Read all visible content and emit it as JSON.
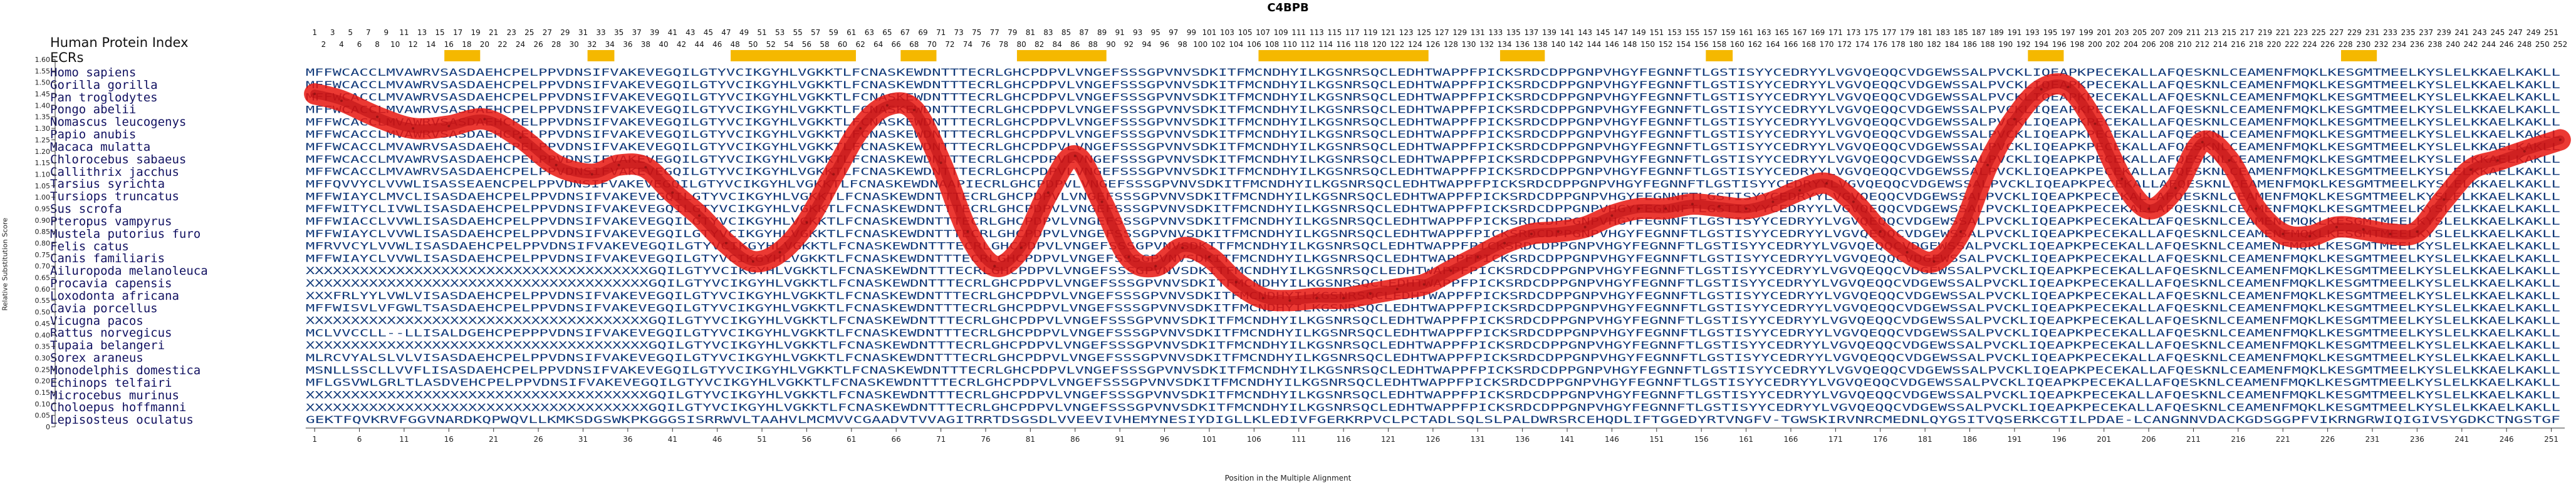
{
  "chart_data": {
    "type": "line",
    "title": "C4BPB",
    "xlabel": "Position in the Multiple Alignment",
    "ylabel": "Relative Substitution Score",
    "ylim": [
      0,
      1.6
    ],
    "y_ticks": [
      "0",
      "0.05",
      "0.10",
      "0.15",
      "0.20",
      "0.25",
      "0.30",
      "0.35",
      "0.40",
      "0.45",
      "0.50",
      "0.55",
      "0.60",
      "0.65",
      "0.70",
      "0.75",
      "0.80",
      "0.85",
      "0.90",
      "0.95",
      "1.00",
      "1.05",
      "1.10",
      "1.15",
      "1.20",
      "1.25",
      "1.30",
      "1.35",
      "1.40",
      "1.45",
      "1.50",
      "1.55",
      "1.60"
    ],
    "x_range": [
      1,
      252
    ],
    "x_ticks": [
      "1",
      "6",
      "11",
      "16",
      "21",
      "26",
      "31",
      "36",
      "41",
      "46",
      "51",
      "56",
      "61",
      "66",
      "71",
      "76",
      "81",
      "86",
      "91",
      "96",
      "101",
      "106",
      "111",
      "116",
      "121",
      "126",
      "131",
      "136",
      "141",
      "146",
      "151",
      "156",
      "161",
      "166",
      "171",
      "176",
      "181",
      "186",
      "191",
      "196",
      "201",
      "206",
      "211",
      "216",
      "221",
      "226",
      "231",
      "236",
      "241",
      "246",
      "251"
    ],
    "top_ruler_odd": [
      "1",
      "3",
      "5",
      "7",
      "9",
      "11",
      "13",
      "15",
      "17",
      "19",
      "21",
      "23",
      "25",
      "27",
      "29",
      "31",
      "33",
      "35",
      "37",
      "39",
      "41",
      "43",
      "45",
      "47",
      "49",
      "51",
      "53",
      "55",
      "57",
      "59",
      "61",
      "63",
      "65",
      "67",
      "69",
      "71",
      "73",
      "75",
      "77",
      "79",
      "81",
      "83",
      "85",
      "87",
      "89",
      "91",
      "93",
      "95",
      "97",
      "99",
      "101",
      "103",
      "105",
      "107",
      "109",
      "111",
      "113",
      "115",
      "117",
      "119",
      "121",
      "123",
      "125",
      "127",
      "129",
      "131",
      "133",
      "135",
      "137",
      "139",
      "141",
      "143",
      "145",
      "147",
      "149",
      "151",
      "153",
      "155",
      "157",
      "159",
      "161",
      "163",
      "165",
      "167",
      "169",
      "171",
      "173",
      "175",
      "177",
      "179",
      "181",
      "183",
      "185",
      "187",
      "189",
      "191",
      "193",
      "195",
      "197",
      "199",
      "201",
      "203",
      "205",
      "207",
      "209",
      "211",
      "213",
      "215",
      "217",
      "219",
      "221",
      "223",
      "225",
      "227",
      "229",
      "231",
      "233",
      "235",
      "237",
      "239",
      "241",
      "243",
      "245",
      "247",
      "249",
      "251"
    ],
    "top_ruler_even": [
      "2",
      "4",
      "6",
      "8",
      "10",
      "12",
      "14",
      "16",
      "18",
      "20",
      "22",
      "24",
      "26",
      "28",
      "30",
      "32",
      "34",
      "36",
      "38",
      "40",
      "42",
      "44",
      "46",
      "48",
      "50",
      "52",
      "54",
      "56",
      "58",
      "60",
      "62",
      "64",
      "66",
      "68",
      "70",
      "72",
      "74",
      "76",
      "78",
      "80",
      "82",
      "84",
      "86",
      "88",
      "90",
      "92",
      "94",
      "96",
      "98",
      "100",
      "102",
      "104",
      "106",
      "108",
      "110",
      "112",
      "114",
      "116",
      "118",
      "120",
      "122",
      "124",
      "126",
      "128",
      "130",
      "132",
      "134",
      "136",
      "138",
      "140",
      "142",
      "144",
      "146",
      "148",
      "150",
      "152",
      "154",
      "156",
      "158",
      "160",
      "162",
      "164",
      "166",
      "168",
      "170",
      "172",
      "174",
      "176",
      "178",
      "180",
      "182",
      "184",
      "186",
      "188",
      "190",
      "192",
      "194",
      "196",
      "198",
      "200",
      "202",
      "204",
      "206",
      "208",
      "210",
      "212",
      "214",
      "216",
      "218",
      "220",
      "222",
      "224",
      "226",
      "228",
      "230",
      "232",
      "234",
      "236",
      "238",
      "240",
      "242",
      "244",
      "246",
      "248",
      "250",
      "252"
    ],
    "series": [
      {
        "x": [
          1,
          4,
          8,
          12,
          16,
          20,
          24,
          28,
          32,
          35,
          38,
          41,
          44,
          47,
          50,
          53,
          56,
          59,
          62,
          65,
          68,
          71,
          74,
          77,
          80,
          83,
          86,
          89,
          92,
          95,
          98,
          101,
          104,
          107,
          110,
          113,
          116,
          119,
          122,
          125,
          128,
          131,
          134,
          137,
          140,
          143,
          146,
          149,
          152,
          155,
          158,
          161,
          164,
          167,
          170,
          173,
          176,
          179,
          182,
          185,
          188,
          191,
          194,
          197,
          200,
          203,
          206,
          209,
          212,
          215,
          218,
          221,
          224,
          227,
          230,
          233,
          236,
          239,
          242,
          245,
          248,
          252
        ],
        "values": [
          1.45,
          1.42,
          1.35,
          1.3,
          1.31,
          1.34,
          1.26,
          1.14,
          1.1,
          1.14,
          1.13,
          1.02,
          0.92,
          0.8,
          0.72,
          0.76,
          0.89,
          1.1,
          1.3,
          1.4,
          1.38,
          1.15,
          0.85,
          0.7,
          0.78,
          1.02,
          1.18,
          0.98,
          0.74,
          0.7,
          0.78,
          0.74,
          0.63,
          0.56,
          0.55,
          0.56,
          0.56,
          0.58,
          0.6,
          0.62,
          0.68,
          0.74,
          0.8,
          0.84,
          0.85,
          0.87,
          0.92,
          0.95,
          0.95,
          0.97,
          0.96,
          0.95,
          0.98,
          1.03,
          1.06,
          0.98,
          0.85,
          0.76,
          0.72,
          0.85,
          1.14,
          1.34,
          1.47,
          1.48,
          1.32,
          1.08,
          0.95,
          1.04,
          1.24,
          1.16,
          0.95,
          0.84,
          0.83,
          0.87,
          0.86,
          0.84,
          0.85,
          0.99,
          1.12,
          1.16,
          1.2,
          1.25
        ]
      }
    ],
    "ecr_highlights": [
      [
        16,
        19
      ],
      [
        32,
        34
      ],
      [
        48,
        61
      ],
      [
        67,
        70
      ],
      [
        80,
        89
      ],
      [
        107,
        125
      ],
      [
        134,
        138
      ],
      [
        157,
        159
      ],
      [
        193,
        196
      ],
      [
        228,
        231
      ]
    ]
  },
  "left_header": {
    "index_title": "Human Protein Index",
    "ecr_label": "ECRs"
  },
  "species": [
    {
      "name": "Homo sapiens",
      "seq": "MFFWCACCLMVAWRVSASDAEHCPELPPVDNSIFVAKEVEGQILGTYVCIKGYHLVGKKTLFCNASKEWDNTTTECRLGHCPDPVLVNGEFSSSGPVNVSDKITFMCNDHYILKGSNRSQCLEDHTWAPPFPICKSRDCDPPGNPVHGYFEGNNFTLGSTISYYCEDRYYLVGVQEQQCVDGEWSSALPVCKLIQEAPKPECEKALLAFQESKNLCEAMENFMQKLKESGMTMEELKYSLELKKAELKAKLL"
    },
    {
      "name": "Gorilla gorilla",
      "seq": "MFFWCACCLMVAWRVSASDAEHCPELPPVDNSIFVAKEVEGQILGTYVCIKGYHLVGKKTLFCNASKEWDNTTTECRLGHCPDPVLVNGEFSSSGPVNVSDKITFMCNDHYILKGSNRSQCLEDHTWAPPFPICKSRDCDPPGNPVHGYFEGNNFTLGSTISYYCEDRYYLVGVQEQQCVDGEWSSALPVCKLIQEAPKPECEKALLAFQESKNLCEAMENFMQKLKESGMTMEELKYSLELKKAELKAKLL"
    },
    {
      "name": "Pan troglodytes",
      "seq": "MFFWCACCLMVAWRVSASDAEHCPELPPVDNSIFVAKEVEGQILGTYVCIKGYHLVGKKTLFCNASKEWDNTTTECRLGHCPDPVLVNGEFSSSGPVNVSDKITFMCNDHYILKGSNRSQCLEDHTWAPPFPICKSRDCDPPGNPVHGYFEGNNFTLGSTISYYCEDRYYLVGVQEQQCVDGEWSSALPVCKLIQEAPKPECEKALLAFQESKNLCEAMENFMQKLKESGMTMEELKYSLELKKAELKAKLL"
    },
    {
      "name": "Pongo abelii",
      "seq": "MFFWCACCLMVAWRVSASDAEHCPELPPVDNSIFVAKEVEGQILGTYVCIKGYHLVGKKTLFCNASKEWDNTTTECRLGHCPDPVLVNGEFSSSGPVNVSDKITFMCNDHYILKGSNRSQCLEDHTWAPPFPICKSRDCDPPGNPVHGYFEGNNFTLGSTISYYCEDRYYLVGVQEQQCVDGEWSSALPVCKLIQEAPKPECEKALLAFQESKNLCEAMENFMQKLKESGMTMEELKYSLELKKAELKAKLL"
    },
    {
      "name": "Nomascus leucogenys",
      "seq": "MFFWCACCLMVAWRVSASDAEHCPELPPVDNSIFVAKEVEGQILGTYVCIKGYHLVGKKTLFCNASKEWDNTTTECRLGHCPDPVLVNGEFSSSGPVNVSDKITFMCNDHYILKGSNRSQCLEDHTWAPPFPICKSRDCDPPGNPVHGYFEGNNFTLGSTISYYCEDRYYLVGVQEQQCVDGEWSSALPVCKLIQEAPKPECEKALLAFQESKNLCEAMENFMQKLKESGMTMEELKYSLELKKAELKAKLL"
    },
    {
      "name": "Papio anubis",
      "seq": "MFFWCACCLMVAWRVSASDAEHCPELPPVDNSIFVAKEVEGQILGTYVCIKGYHLVGKKTLFCNASKEWDNTTTECRLGHCPDPVLVNGEFSSSGPVNVSDKITFMCNDHYILKGSNRSQCLEDHTWAPPFPICKSRDCDPPGNPVHGYFEGNNFTLGSTISYYCEDRYYLVGVQEQQCVDGEWSSALPVCKLIQEAPKPECEKALLAFQESKNLCEAMENFMQKLKESGMTMEELKYSLELKKAELKAKLL"
    },
    {
      "name": "Macaca mulatta",
      "seq": "MFFWCACCLMVAWRVSASDAEHCPELPPVDNSIFVAKEVEGQILGTYVCIKGYHLVGKKTLFCNASKEWDNTTTECRLGHCPDPVLVNGEFSSSGPVNVSDKITFMCNDHYILKGSNRSQCLEDHTWAPPFPICKSRDCDPPGNPVHGYFEGNNFTLGSTISYYCEDRYYLVGVQEQQCVDGEWSSALPVCKLIQEAPKPECEKALLAFQESKNLCEAMENFMQKLKESGMTMEELKYSLELKKAELKAKLL"
    },
    {
      "name": "Chlorocebus sabaeus",
      "seq": "MFFWCACCLMVAWRVSASDAEHCPELPPVDNSIFVAKEVEGQILGTYVCIKGYHLVGKKTLFCNASKEWDNTTTECRLGHCPDPVLVNGEFSSSGPVNVSDKITFMCNDHYILKGSNRSQCLEDHTWAPPFPICKSRDCDPPGNPVHGYFEGNNFTLGSTISYYCEDRYYLVGVQEQQCVDGEWSSALPVCKLIQEAPKPECEKALLAFQESKNLCEAMENFMQKLKESGMTMEELKYSLELKKAELKAKLL"
    },
    {
      "name": "Callithrix jacchus",
      "seq": "MFFWCACCLMVAWRVSASDAEHCPELPPVDNSIFVAKEVEGQILGTYVCIKGYHLVGKKTLFCNASKEWDNTTTECRLGHCPDPVLVNGEFSSSGPVNVSDKITFMCNDHYILKGSNRSQCLEDHTWAPPFPICKSRDCDPPGNPVHGYFEGNNFTLGSTISYYCEDRYYLVGVQEQQCVDGEWSSALPVCKLIQEAPKPECEKALLAFQESKNLCEAMENFMQKLKESGMTMEELKYSLELKKAELKAKLL"
    },
    {
      "name": "Tarsius syrichta",
      "seq": "MFFQVVYCLVVWLISASSEAENCPELPPVDNSIFVAKEVEGQILGTYVCIKGYHLVGKKTLFCNASKEWDNAAPIECRLGHCPDPVLVNGEFSSSGPVNVSDKITFMCNDHYILKGSNRSQCLEDHTWAPPFPICKSRDCDPPGNPVHGYFEGNNFTLGSTISYYCEDRYYLVGVQEQQCVDGEWSSALPVCKLIQEAPKPECEKALLAFQESKNLCEAMENFMQKLKESGMTMEELKYSLELKKAELKAKLL"
    },
    {
      "name": "Tursiops truncatus",
      "seq": "MFFWIAYCLMVCLISASDAEHCPELPPVDNSIFVAKEVEGQILGTYVCIKGYHLVGKKTLFCNASKEWDNTTTECRLGHCPDPVLVNGEFSSSGPVNVSDKITFMCNDHYILKGSNRSQCLEDHTWAPPFPICKSRDCDPPGNPVHGYFEGNNFTLGSTISYYCEDRYYLVGVQEQQCVDGEWSSALPVCKLIQEAPKPECEKALLAFQESKNLCEAMENFMQKLKESGMTMEELKYSLELKKAELKAKLL"
    },
    {
      "name": "Sus scrofa",
      "seq": "MFFWITYCLIVWLISASDAEHCPELPPVDNSIFVAKEVEGQILGTYVCIKGYHLVGKKTLFCNASKEWDNTTTECRLGHCPDPVLVNGEFSSSGPVNVSDKITFMCNDHYILKGSNRSQCLEDHTWAPPFPICKSRDCDPPGNPVHGYFEGNNFTLGSTISYYCEDRYYLVGVQEQQCVDGEWSSALPVCKLIQEAPKPECEKALLAFQESKNLCEAMENFMQKLKESGMTMEELKYSLELKKAELKAKLL"
    },
    {
      "name": "Pteropus vampyrus",
      "seq": "MFFWIACCLVVWLISASDAEHCPELPPVDNSIFVAKEVEGQILGTYVCIKGYHLVGKKTLFCNASKEWDNTTTECRLGHCPDPVLVNGEFSSSGPVNVSDKITFMCNDHYILKGSNRSQCLEDHTWAPPFPICKSRDCDPPGNPVHGYFEGNNFTLGSTISYYCEDRYYLVGVQEQQCVDGEWSSALPVCKLIQEAPKPECEKALLAFQESKNLCEAMENFMQKLKESGMTMEELKYSLELKKAELKAKLL"
    },
    {
      "name": "Mustela putorius furo",
      "seq": "MFFWIAYCLVVWLISASDAEHCPELPPVDNSIFVAKEVEGQILGTYVCIKGYHLVGKKTLFCNASKEWDNTTTECRLGHCPDPVLVNGEFSSSGPVNVSDKITFMCNDHYILKGSNRSQCLEDHTWAPPFPICKSRDCDPPGNPVHGYFEGNNFTLGSTISYYCEDRYYLVGVQEQQCVDGEWSSALPVCKLIQEAPKPECEKALLAFQESKNLCEAMENFMQKLKESGMTMEELKYSLELKKAELKAKLL"
    },
    {
      "name": "Felis catus",
      "seq": "MFRVVCYLVVWLISASDAEHCPELPPVDNSIFVAKEVEGQILGTYVCIKGYHLVGKKTLFCNASKEWDNTTTECRLGHCPDPVLVNGEFSSSGPVNVSDKITFMCNDHYILKGSNRSQCLEDHTWAPPFPICKSRDCDPPGNPVHGYFEGNNFTLGSTISYYCEDRYYLVGVQEQQCVDGEWSSALPVCKLIQEAPKPECEKALLAFQESKNLCEAMENFMQKLKESGMTMEELKYSLELKKAELKAKLL"
    },
    {
      "name": "Canis familiaris",
      "seq": "MFFWIAYCLVVWLISASDAEHCPELPPVDNSIFVAKEVEGQILGTYVCIKGYHLVGKKTLFCNASKEWDNTTTECRLGHCPDPVLVNGEFSSSGPVNVSDKITFMCNDHYILKGSNRSQCLEDHTWAPPFPICKSRDCDPPGNPVHGYFEGNNFTLGSTISYYCEDRYYLVGVQEQQCVDGEWSSALPVCKLIQEAPKPECEKALLAFQESKNLCEAMENFMQKLKESGMTMEELKYSLELKKAELKAKLL"
    },
    {
      "name": "Ailuropoda melanoleuca",
      "seq": "XXXXXXXXXXXXXXXXXXXXXXXXXXXXXXXXXXXXXXGQILGTYVCIKGYHLVGKKTLFCNASKEWDNTTTECRLGHCPDPVLVNGEFSSSGPVNVSDKITFMCNDHYILKGSNRSQCLEDHTWAPPFPICKSRDCDPPGNPVHGYFEGNNFTLGSTISYYCEDRYYLVGVQEQQCVDGEWSSALPVCKLIQEAPKPECEKALLAFQESKNLCEAMENFMQKLKESGMTMEELKYSLELKKAELKAKLL"
    },
    {
      "name": "Procavia capensis",
      "seq": "XXXXXXXXXXXXXXXXXXXXXXXXXXXXXXXXXXXXXXGQILGTYVCIKGYHLVGKKTLFCNASKEWDNTTTECRLGHCPDPVLVNGEFSSSGPVNVSDKITFMCNDHYILKGSNRSQCLEDHTWAPPFPICKSRDCDPPGNPVHGYFEGNNFTLGSTISYYCEDRYYLVGVQEQQCVDGEWSSALPVCKLIQEAPKPECEKALLAFQESKNLCEAMENFMQKLKESGMTMEELKYSLELKKAELKAKLL"
    },
    {
      "name": "Loxodonta africana",
      "seq": "XXXFRLYYLVWLVISASDAEHCPELPPVDNSIFVAKEVEGQILGTYVCIKGYHLVGKKTLFCNASKEWDNTTTECRLGHCPDPVLVNGEFSSSGPVNVSDKITFMCNDHYILKGSNRSQCLEDHTWAPPFPICKSRDCDPPGNPVHGYFEGNNFTLGSTISYYCEDRYYLVGVQEQQCVDGEWSSALPVCKLIQEAPKPECEKALLAFQESKNLCEAMENFMQKLKESGMTMEELKYSLELKKAELKAKLL"
    },
    {
      "name": "Cavia porcellus",
      "seq": "MFFWISVLVFGWLTSASDAEHCPELPPVDNSIFVAKEVEGQILGTYVCIKGYHLVGKKTLFCNASKEWDNTTTECRLGHCPDPVLVNGEFSSSGPVNVSDKITFMCNDHYILKGSNRSQCLEDHTWAPPFPICKSRDCDPPGNPVHGYFEGNNFTLGSTISYYCEDRYYLVGVQEQQCVDGEWSSALPVCKLIQEAPKPECEKALLAFQESKNLCEAMENFMQKLKESGMTMEELKYSLELKKAELKAKLL"
    },
    {
      "name": "Vicugna pacos",
      "seq": "XXXXXXXXXXXXXXXXXXXXXXXXXXXXXXXXXXXXXXGQILGTYVCIKGYHLVGKKTLFCNASKEWDNTTTECRLGHCPDPVLVNGEFSSSGPVNVSDKITFMCNDHYILKGSNRSQCLEDHTWAPPFPICKSRDCDPPGNPVHGYFEGNNFTLGSTISYYCEDRYYLVGVQEQQCVDGEWSSALPVCKLIQEAPKPECEKALLAFQESKNLCEAMENFMQKLKESGMTMEELKYSLELKKAELKAKLL"
    },
    {
      "name": "Rattus norvegicus",
      "seq": "MCLVVCCLL--LLISALDGEHCPEPPPVDNSIFVAKEVEGQILGTYVCIKGYHLVGKKTLFCNASKEWDNTTTECRLGHCPDPVLVNGEFSSSGPVNVSDKITFMCNDHYILKGSNRSQCLEDHTWAPPFPICKSRDCDPPGNPVHGYFEGNNFTLGSTISYYCEDRYYLVGVQEQQCVDGEWSSALPVCKLIQEAPKPECEKALLAFQESKNLCEAMENFMQKLKESGMTMEELKYSLELKKAELKAKLL"
    },
    {
      "name": "Tupaia belangeri",
      "seq": "XXXXXXXXXXXXXXXXXXXXXXXXXXXXXXXXXXXXXXGQILGTYVCIKGYHLVGKKTLFCNASKEWDNTTTECRLGHCPDPVLVNGEFSSSGPVNVSDKITFMCNDHYILKGSNRSQCLEDHTWAPPFPICKSRDCDPPGNPVHGYFEGNNFTLGSTISYYCEDRYYLVGVQEQQCVDGEWSSALPVCKLIQEAPKPECEKALLAFQESKNLCEAMENFMQKLKESGMTMEELKYSLELKKAELKAKLL"
    },
    {
      "name": "Sorex araneus",
      "seq": "MLRCVYALSLVLVISASDAEHCPELPPVDNSIFVAKEVEGQILGTYVCIKGYHLVGKKTLFCNASKEWDNTTTECRLGHCPDPVLVNGEFSSSGPVNVSDKITFMCNDHYILKGSNRSQCLEDHTWAPPFPICKSRDCDPPGNPVHGYFEGNNFTLGSTISYYCEDRYYLVGVQEQQCVDGEWSSALPVCKLIQEAPKPECEKALLAFQESKNLCEAMENFMQKLKESGMTMEELKYSLELKKAELKAKLL"
    },
    {
      "name": "Monodelphis domestica",
      "seq": "MSNLLSSCLLVVFLISASDAEHCPELPPVDNSIFVAKEVEGQILGTYVCIKGYHLVGKKTLFCNASKEWDNTTTECRLGHCPDPVLVNGEFSSSGPVNVSDKITFMCNDHYILKGSNRSQCLEDHTWAPPFPICKSRDCDPPGNPVHGYFEGNNFTLGSTISYYCEDRYYLVGVQEQQCVDGEWSSALPVCKLIQEAPKPECEKALLAFQESKNLCEAMENFMQKLKESGMTMEELKYSLELKKAELKAKLL"
    },
    {
      "name": "Echinops telfairi",
      "seq": "MFLGSVWLGRLTLASDVEHCPELPPVDNSIFVAKEVEGQILGTYVCIKGYHLVGKKTLFCNASKEWDNTTTECRLGHCPDPVLVNGEFSSSGPVNVSDKITFMCNDHYILKGSNRSQCLEDHTWAPPFPICKSRDCDPPGNPVHGYFEGNNFTLGSTISYYCEDRYYLVGVQEQQCVDGEWSSALPVCKLIQEAPKPECEKALLAFQESKNLCEAMENFMQKLKESGMTMEELKYSLELKKAELKAKLL"
    },
    {
      "name": "Microcebus murinus",
      "seq": "XXXXXXXXXXXXXXXXXXXXXXXXXXXXXXXXXXXXXXGQILGTYVCIKGYHLVGKKTLFCNASKEWDNTTTECRLGHCPDPVLVNGEFSSSGPVNVSDKITFMCNDHYILKGSNRSQCLEDHTWAPPFPICKSRDCDPPGNPVHGYFEGNNFTLGSTISYYCEDRYYLVGVQEQQCVDGEWSSALPVCKLIQEAPKPECEKALLAFQESKNLCEAMENFMQKLKESGMTMEELKYSLELKKAELKAKLL"
    },
    {
      "name": "Choloepus hoffmanni",
      "seq": "XXXXXXXXXXXXXXXXXXXXXXXXXXXXXXXXXXXXXXGQILGTYVCIKGYHLVGKKTLFCNASKEWDNTTTECRLGHCPDPVLVNGEFSSSGPVNVSDKITFMCNDHYILKGSNRSQCLEDHTWAPPFPICKSRDCDPPGNPVHGYFEGNNFTLGSTISYYCEDRYYLVGVQEQQCVDGEWSSALPVCKLIQEAPKPECEKALLAFQESKNLCEAMENFMQKLKESGMTMEELKYSLELKKAELKAKLL"
    },
    {
      "name": "Lepisosteus oculatus",
      "seq": "GEKTFQVKRVFGGVNARDKQPWQVLLKMKSDGSWKPKGGGSISRRWVLTAAHVLMCMVVCGAADVTVVAGITRRTDSGSDLVVEEVIVHEMYNESIYDIGLLKLEDIVFGERKRPVCLPCTADLSQLSLPALDWRSRCEHQDLIFTGGEDYRTVNGFV-TGWSKIRVNRCMEDNLQYGSITVQSERKCGTILPDAE-LCANGNNVDACKGDSGGPFVIKRNGRWIQIGIVSYGDKCTNGSTGF"
    }
  ],
  "colors": {
    "ecr_highlight": "#f5b800",
    "curve_outer": "#e8160f",
    "curve_inner": "#b80f12",
    "sequence_text": "#123a7a",
    "sequence_conserved": "#6b8ec2"
  }
}
